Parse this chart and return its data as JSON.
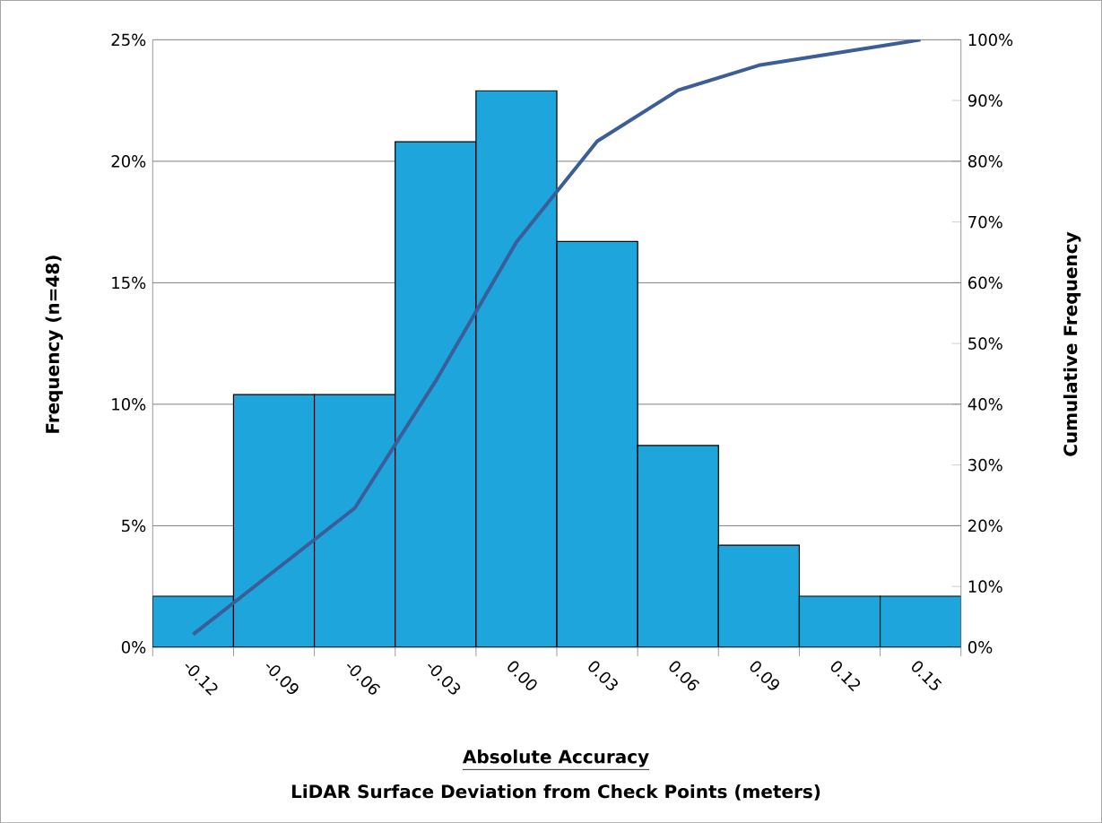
{
  "chart_data": {
    "type": "bar",
    "categories": [
      "-0.12",
      "-0.09",
      "-0.06",
      "-0.03",
      "0.00",
      "0.03",
      "0.06",
      "0.09",
      "0.12",
      "0.15"
    ],
    "series": [
      {
        "color": "#1ea6dc",
        "values": [
          2.1,
          10.4,
          10.4,
          20.8,
          22.9,
          16.7,
          8.3,
          4.2,
          2.1,
          2.1
        ]
      },
      {
        "type": "line",
        "axis": "y2",
        "color": "#3b5e98",
        "values": [
          2.1,
          12.5,
          22.9,
          43.8,
          66.7,
          83.3,
          91.7,
          95.8,
          97.9,
          100
        ]
      }
    ],
    "ylim": [
      0,
      25
    ],
    "yticks": [
      {
        "value": 0,
        "label": "0%"
      },
      {
        "value": 5,
        "label": "5%"
      },
      {
        "value": 10,
        "label": "10%"
      },
      {
        "value": 15,
        "label": "15%"
      },
      {
        "value": 20,
        "label": "20%"
      },
      {
        "value": 25,
        "label": "25%"
      }
    ],
    "y2lim": [
      0,
      100
    ],
    "y2ticks": [
      {
        "value": 0,
        "label": "0%"
      },
      {
        "value": 10,
        "label": "10%"
      },
      {
        "value": 20,
        "label": "20%"
      },
      {
        "value": 30,
        "label": "30%"
      },
      {
        "value": 40,
        "label": "40%"
      },
      {
        "value": 50,
        "label": "50%"
      },
      {
        "value": 60,
        "label": "60%"
      },
      {
        "value": 70,
        "label": "70%"
      },
      {
        "value": 80,
        "label": "80%"
      },
      {
        "value": 90,
        "label": "90%"
      },
      {
        "value": 100,
        "label": "100%"
      }
    ],
    "ylabel": "Frequency (n=48)",
    "y2label": "Cumulative Frequency",
    "xlabel": "Absolute Accuracy",
    "annotations": [
      "LiDAR Surface Deviation from Check Points (meters)"
    ],
    "grid": "y",
    "marker": "none",
    "line_style": "solid"
  }
}
